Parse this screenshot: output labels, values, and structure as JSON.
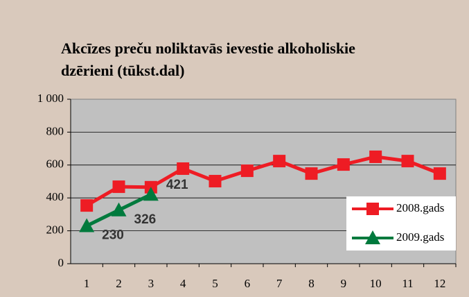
{
  "chart_data": {
    "type": "line",
    "title": [
      "Akcīzes preču noliktavās ievestie  alkoholiskie",
      "dzērieni (tūkst.dal)"
    ],
    "categories": [
      "1",
      "2",
      "3",
      "4",
      "5",
      "6",
      "7",
      "8",
      "9",
      "10",
      "11",
      "12"
    ],
    "series": [
      {
        "name": "2008.gads",
        "color": "#ee1c24",
        "marker": "square",
        "data_labels": false,
        "values": [
          354,
          468,
          465,
          578,
          502,
          565,
          624,
          548,
          603,
          650,
          624,
          548
        ]
      },
      {
        "name": "2009.gads",
        "color": "#007a3d",
        "marker": "triangle",
        "data_labels": true,
        "values": [
          230,
          326,
          421,
          null,
          null,
          null,
          null,
          null,
          null,
          null,
          null,
          null
        ]
      }
    ],
    "ylim": [
      0,
      1000
    ],
    "yticks": [
      0,
      200,
      400,
      600,
      800,
      {
        "value": 1000,
        "label": "1 000"
      }
    ],
    "grid": true,
    "legend": "right"
  }
}
